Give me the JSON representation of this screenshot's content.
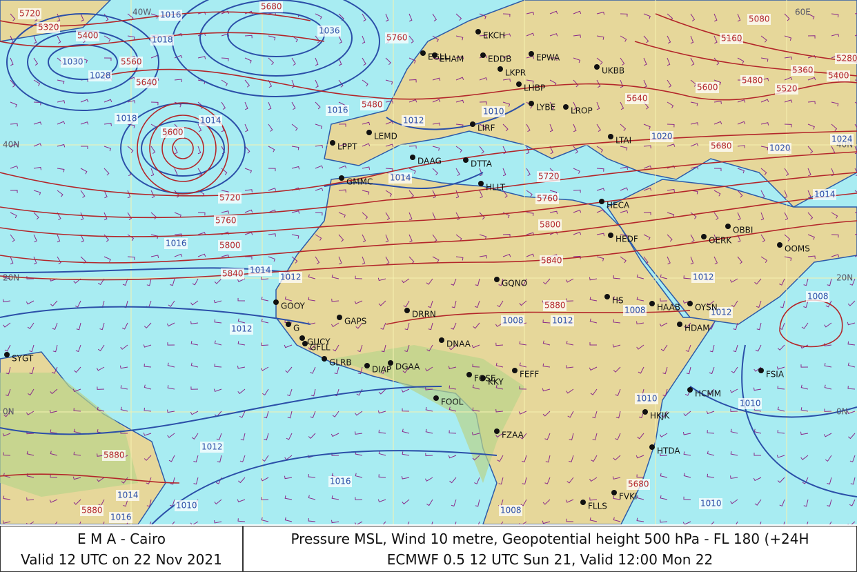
{
  "map": {
    "grid_labels": [
      "40N",
      "20N",
      "0N",
      "40N",
      "20N",
      "0N",
      "60E",
      "40W"
    ],
    "stations": [
      "SYGT",
      "GOOY",
      "G",
      "GUCY",
      "GFLL",
      "GLRB",
      "GAPS",
      "DIAP",
      "DGAA",
      "DRRN",
      "DNAA",
      "FGSE",
      "KKY",
      "FEFF",
      "FOOL",
      "FZAA",
      "HLLT",
      "HECA",
      "HEDF",
      "GQNO",
      "HS",
      "HDAM",
      "HCMM",
      "HTDA",
      "HKJK",
      "FSIA",
      "OERK",
      "OBBI",
      "OOMS",
      "LTAI",
      "DAAG",
      "DTTA",
      "LEMD",
      "LPPT",
      "GMMC",
      "EGLL",
      "EHAM",
      "EPWA",
      "UKBB",
      "LYBE",
      "LIRF",
      "LKPR",
      "EDDB",
      "LHBP",
      "LROP",
      "EKCH",
      "FVKI",
      "HAAB",
      "OYSN",
      "FLLS"
    ],
    "isobar_labels": [
      "1016",
      "1036",
      "1018",
      "1030",
      "1028",
      "1018",
      "1014",
      "1012",
      "1010",
      "1016",
      "1014",
      "1012",
      "1012",
      "1008",
      "1012",
      "1010",
      "1016",
      "1014",
      "1012",
      "1010",
      "1020",
      "1024",
      "1020",
      "1014",
      "1016",
      "1008",
      "1010",
      "1016",
      "1014",
      "1012",
      "1008",
      "1008",
      "1012",
      "1010"
    ],
    "height_labels": [
      "5320",
      "5400",
      "5560",
      "5640",
      "5720",
      "5760",
      "5680",
      "5600",
      "5720",
      "5760",
      "5800",
      "5840",
      "5480",
      "5640",
      "5680",
      "5720",
      "5760",
      "5800",
      "5840",
      "5880",
      "5600",
      "5480",
      "5520",
      "5360",
      "5280",
      "5400",
      "5160",
      "5080",
      "5880",
      "5880",
      "5680"
    ]
  },
  "footer": {
    "left": [
      "E M A  -  Cairo",
      "Valid 12 UTC on 22 Nov 2021"
    ],
    "right": [
      "Pressure  MSL, Wind  10 metre, Geopotential height  500 hPa - FL 180 (+24H",
      "ECMWF 0.5 12 UTC Sun 21, Valid 12:00 Mon 22"
    ]
  }
}
